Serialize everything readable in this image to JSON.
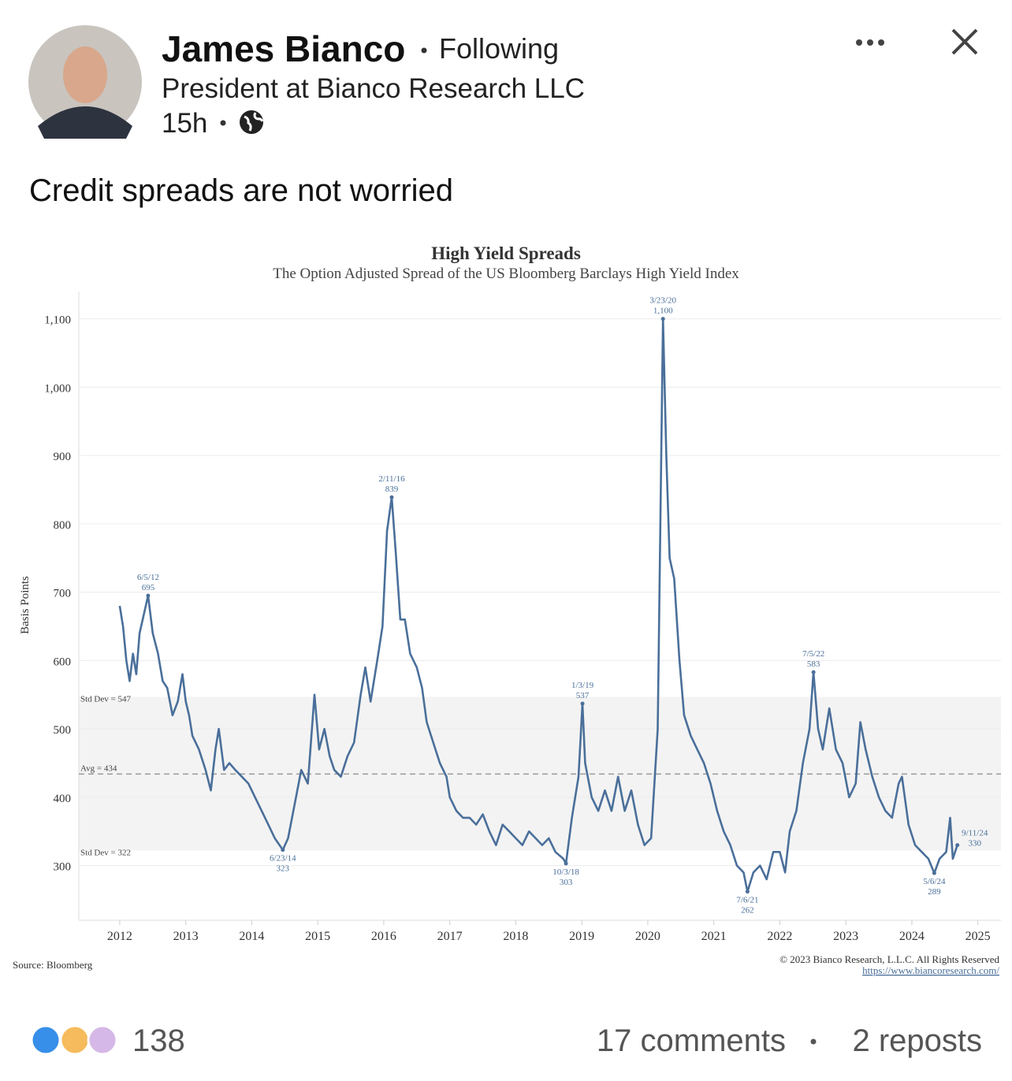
{
  "post": {
    "author": "James Bianco",
    "status": "Following",
    "headline": "President at Bianco Research LLC",
    "time": "15h",
    "text": "Credit spreads are not worried"
  },
  "chart_data": {
    "type": "line",
    "title": "High Yield Spreads",
    "subtitle": "The Option Adjusted Spread of the US Bloomberg Barclays High Yield Index",
    "y_label": "Basis Points",
    "xlim": [
      2011.38,
      2025.35
    ],
    "xticks": [
      2012,
      2013,
      2014,
      2015,
      2016,
      2017,
      2018,
      2019,
      2020,
      2021,
      2022,
      2023,
      2024,
      2025
    ],
    "ylim": [
      220,
      1140
    ],
    "yticks": [
      300,
      400,
      500,
      600,
      700,
      800,
      900,
      {
        "value": 1000,
        "label": "1,000"
      },
      {
        "value": 1100,
        "label": "1,100"
      }
    ],
    "grid": true,
    "series": [
      {
        "color": "#4a6f9a",
        "x": [
          2012.0,
          2012.05,
          2012.1,
          2012.15,
          2012.2,
          2012.25,
          2012.3,
          2012.43,
          2012.5,
          2012.58,
          2012.65,
          2012.72,
          2012.8,
          2012.88,
          2012.95,
          2013.0,
          2013.05,
          2013.1,
          2013.2,
          2013.3,
          2013.38,
          2013.45,
          2013.5,
          2013.58,
          2013.66,
          2013.75,
          2013.85,
          2013.95,
          2014.05,
          2014.15,
          2014.25,
          2014.35,
          2014.47,
          2014.55,
          2014.65,
          2014.75,
          2014.85,
          2014.95,
          2015.02,
          2015.1,
          2015.18,
          2015.25,
          2015.35,
          2015.45,
          2015.55,
          2015.65,
          2015.72,
          2015.8,
          2015.9,
          2015.98,
          2016.05,
          2016.12,
          2016.18,
          2016.25,
          2016.32,
          2016.4,
          2016.5,
          2016.58,
          2016.65,
          2016.75,
          2016.85,
          2016.95,
          2017.0,
          2017.1,
          2017.2,
          2017.3,
          2017.4,
          2017.5,
          2017.6,
          2017.7,
          2017.8,
          2017.9,
          2018.0,
          2018.1,
          2018.2,
          2018.3,
          2018.4,
          2018.5,
          2018.6,
          2018.72,
          2018.76,
          2018.85,
          2018.95,
          2019.01,
          2019.05,
          2019.15,
          2019.25,
          2019.35,
          2019.45,
          2019.55,
          2019.65,
          2019.75,
          2019.85,
          2019.95,
          2020.05,
          2020.15,
          2020.23,
          2020.28,
          2020.33,
          2020.4,
          2020.48,
          2020.55,
          2020.65,
          2020.75,
          2020.85,
          2020.95,
          2021.05,
          2021.15,
          2021.25,
          2021.35,
          2021.45,
          2021.51,
          2021.6,
          2021.7,
          2021.8,
          2021.9,
          2022.0,
          2022.08,
          2022.15,
          2022.25,
          2022.35,
          2022.45,
          2022.51,
          2022.58,
          2022.65,
          2022.75,
          2022.85,
          2022.95,
          2023.05,
          2023.15,
          2023.22,
          2023.3,
          2023.4,
          2023.5,
          2023.6,
          2023.7,
          2023.8,
          2023.85,
          2023.95,
          2024.05,
          2024.15,
          2024.25,
          2024.34,
          2024.42,
          2024.52,
          2024.58,
          2024.62,
          2024.69
        ],
        "values": [
          680,
          650,
          600,
          570,
          610,
          580,
          640,
          695,
          640,
          610,
          570,
          560,
          520,
          540,
          580,
          540,
          520,
          490,
          470,
          440,
          410,
          470,
          500,
          440,
          450,
          440,
          430,
          420,
          400,
          380,
          360,
          340,
          323,
          340,
          390,
          440,
          420,
          550,
          470,
          500,
          460,
          440,
          430,
          460,
          480,
          550,
          590,
          540,
          600,
          650,
          790,
          839,
          760,
          660,
          660,
          610,
          590,
          560,
          510,
          480,
          450,
          430,
          400,
          380,
          370,
          370,
          360,
          375,
          350,
          330,
          360,
          350,
          340,
          330,
          350,
          340,
          330,
          340,
          320,
          310,
          303,
          370,
          430,
          537,
          450,
          400,
          380,
          410,
          380,
          430,
          380,
          410,
          360,
          330,
          340,
          500,
          1100,
          900,
          750,
          720,
          600,
          520,
          490,
          470,
          450,
          420,
          380,
          350,
          330,
          300,
          290,
          262,
          290,
          300,
          280,
          320,
          320,
          290,
          350,
          380,
          450,
          500,
          583,
          500,
          470,
          530,
          470,
          450,
          400,
          420,
          510,
          470,
          430,
          400,
          380,
          370,
          420,
          430,
          360,
          330,
          320,
          310,
          289,
          310,
          320,
          370,
          310,
          330
        ]
      }
    ],
    "reference_lines": [
      {
        "label": "Std Dev = 547",
        "value": 547
      },
      {
        "label": "Avg = 434",
        "value": 434
      },
      {
        "label": "Std Dev = 322",
        "value": 322
      }
    ],
    "annotations": [
      {
        "label": "6/5/12",
        "x": 2012.43,
        "value": 695,
        "placement": "above"
      },
      {
        "label": "6/23/14",
        "x": 2014.47,
        "value": 323,
        "placement": "below"
      },
      {
        "label": "2/11/16",
        "x": 2016.12,
        "value": 839,
        "placement": "above"
      },
      {
        "label": "10/3/18",
        "x": 2018.76,
        "value": 303,
        "placement": "below"
      },
      {
        "label": "1/3/19",
        "x": 2019.01,
        "value": 537,
        "placement": "above"
      },
      {
        "label": "3/23/20",
        "x": 2020.23,
        "value": 1100,
        "value_label": "1,100",
        "placement": "above"
      },
      {
        "label": "7/6/21",
        "x": 2021.51,
        "value": 262,
        "placement": "below"
      },
      {
        "label": "7/5/22",
        "x": 2022.51,
        "value": 583,
        "placement": "above"
      },
      {
        "label": "5/6/24",
        "x": 2024.34,
        "value": 289,
        "placement": "below"
      },
      {
        "label": "9/11/24",
        "x": 2024.69,
        "value": 330,
        "placement": "right"
      }
    ],
    "source": "Source: Bloomberg",
    "copyright": "© 2023 Bianco Research, L.L.C. All Rights Reserved",
    "url": "https://www.biancoresearch.com/"
  },
  "footer": {
    "reactions": "138",
    "comments": "17 comments",
    "reposts": "2 reposts"
  }
}
